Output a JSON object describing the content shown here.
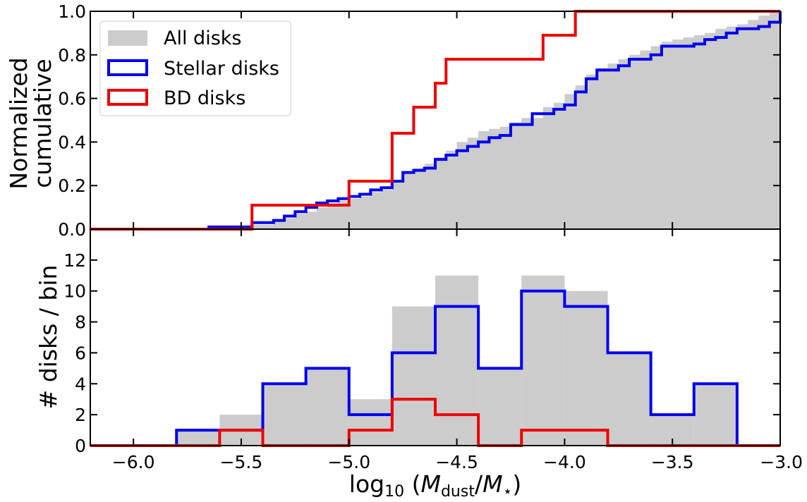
{
  "colors": {
    "all_disks": "#cccccc",
    "stellar_disks": "#0000ee",
    "bd_disks": "#ee0000"
  },
  "chart_data": [
    {
      "type": "step-area",
      "ylabel_line1": "Normalized",
      "ylabel_line2": "cumulative",
      "xlim": [
        -6.2,
        -3.0
      ],
      "ylim": [
        0.0,
        1.0
      ],
      "yticks": [
        0.0,
        0.2,
        0.4,
        0.6,
        0.8,
        1.0
      ],
      "ytick_labels": [
        "0.0",
        "0.2",
        "0.4",
        "0.6",
        "0.8",
        "1.0"
      ],
      "legend_position": "upper-left",
      "legend": [
        {
          "key": "all",
          "label": "All disks"
        },
        {
          "key": "stellar",
          "label": "Stellar disks"
        },
        {
          "key": "bd",
          "label": "BD disks"
        }
      ],
      "series": [
        {
          "key": "all",
          "name": "All disks",
          "style": "filled",
          "points": [
            [
              -6.2,
              0
            ],
            [
              -5.65,
              0.01
            ],
            [
              -5.45,
              0.02
            ],
            [
              -5.35,
              0.04
            ],
            [
              -5.3,
              0.05
            ],
            [
              -5.25,
              0.07
            ],
            [
              -5.2,
              0.08
            ],
            [
              -5.15,
              0.1
            ],
            [
              -5.1,
              0.12
            ],
            [
              -5.05,
              0.13
            ],
            [
              -5.0,
              0.14
            ],
            [
              -4.95,
              0.15
            ],
            [
              -4.9,
              0.17
            ],
            [
              -4.85,
              0.18
            ],
            [
              -4.8,
              0.2
            ],
            [
              -4.8,
              0.22
            ],
            [
              -4.75,
              0.26
            ],
            [
              -4.7,
              0.28
            ],
            [
              -4.65,
              0.3
            ],
            [
              -4.6,
              0.33
            ],
            [
              -4.55,
              0.36
            ],
            [
              -4.5,
              0.4
            ],
            [
              -4.45,
              0.42
            ],
            [
              -4.4,
              0.45
            ],
            [
              -4.35,
              0.46
            ],
            [
              -4.3,
              0.47
            ],
            [
              -4.25,
              0.49
            ],
            [
              -4.2,
              0.51
            ],
            [
              -4.1,
              0.56
            ],
            [
              -4.05,
              0.58
            ],
            [
              -4.0,
              0.62
            ],
            [
              -3.95,
              0.66
            ],
            [
              -3.9,
              0.71
            ],
            [
              -3.85,
              0.74
            ],
            [
              -3.8,
              0.76
            ],
            [
              -3.75,
              0.78
            ],
            [
              -3.7,
              0.8
            ],
            [
              -3.65,
              0.82
            ],
            [
              -3.6,
              0.84
            ],
            [
              -3.55,
              0.86
            ],
            [
              -3.5,
              0.87
            ],
            [
              -3.45,
              0.88
            ],
            [
              -3.4,
              0.89
            ],
            [
              -3.35,
              0.9
            ],
            [
              -3.3,
              0.92
            ],
            [
              -3.25,
              0.93
            ],
            [
              -3.2,
              0.94
            ],
            [
              -3.15,
              0.96
            ],
            [
              -3.1,
              0.98
            ],
            [
              -3.05,
              1.0
            ]
          ]
        },
        {
          "key": "stellar",
          "name": "Stellar disks",
          "style": "step",
          "points": [
            [
              -5.65,
              0.0
            ],
            [
              -5.65,
              0.01
            ],
            [
              -5.45,
              0.03
            ],
            [
              -5.35,
              0.04
            ],
            [
              -5.3,
              0.06
            ],
            [
              -5.25,
              0.08
            ],
            [
              -5.2,
              0.1
            ],
            [
              -5.15,
              0.12
            ],
            [
              -5.1,
              0.13
            ],
            [
              -5.05,
              0.14
            ],
            [
              -5.0,
              0.15
            ],
            [
              -4.95,
              0.16
            ],
            [
              -4.9,
              0.18
            ],
            [
              -4.85,
              0.19
            ],
            [
              -4.8,
              0.22
            ],
            [
              -4.75,
              0.26
            ],
            [
              -4.7,
              0.27
            ],
            [
              -4.65,
              0.28
            ],
            [
              -4.6,
              0.32
            ],
            [
              -4.55,
              0.34
            ],
            [
              -4.5,
              0.36
            ],
            [
              -4.45,
              0.38
            ],
            [
              -4.4,
              0.4
            ],
            [
              -4.35,
              0.42
            ],
            [
              -4.3,
              0.43
            ],
            [
              -4.25,
              0.48
            ],
            [
              -4.15,
              0.53
            ],
            [
              -4.05,
              0.55
            ],
            [
              -4.0,
              0.57
            ],
            [
              -3.95,
              0.63
            ],
            [
              -3.9,
              0.69
            ],
            [
              -3.85,
              0.73
            ],
            [
              -3.75,
              0.75
            ],
            [
              -3.7,
              0.78
            ],
            [
              -3.6,
              0.8
            ],
            [
              -3.55,
              0.84
            ],
            [
              -3.4,
              0.85
            ],
            [
              -3.35,
              0.87
            ],
            [
              -3.3,
              0.88
            ],
            [
              -3.25,
              0.9
            ],
            [
              -3.2,
              0.92
            ],
            [
              -3.1,
              0.93
            ],
            [
              -3.05,
              0.95
            ],
            [
              -3.0,
              1.0
            ]
          ]
        },
        {
          "key": "bd",
          "name": "BD disks",
          "style": "step",
          "points": [
            [
              -6.2,
              0.0
            ],
            [
              -5.45,
              0.0
            ],
            [
              -5.45,
              0.11
            ],
            [
              -5.0,
              0.11
            ],
            [
              -5.0,
              0.22
            ],
            [
              -4.8,
              0.22
            ],
            [
              -4.8,
              0.44
            ],
            [
              -4.7,
              0.44
            ],
            [
              -4.7,
              0.56
            ],
            [
              -4.6,
              0.56
            ],
            [
              -4.6,
              0.67
            ],
            [
              -4.55,
              0.67
            ],
            [
              -4.55,
              0.78
            ],
            [
              -4.1,
              0.78
            ],
            [
              -4.1,
              0.89
            ],
            [
              -3.95,
              0.89
            ],
            [
              -3.95,
              1.0
            ],
            [
              -3.0,
              1.0
            ]
          ]
        }
      ]
    },
    {
      "type": "histogram",
      "xlabel_main": "log",
      "xlabel_sub": "10",
      "xlabel_var_m": "M",
      "xlabel_sub_dust": "dust",
      "xlabel_sub_star": "⋆",
      "ylabel": "# disks / bin",
      "xlim": [
        -6.2,
        -3.0
      ],
      "ylim": [
        0,
        14
      ],
      "xticks": [
        -6.0,
        -5.5,
        -5.0,
        -4.5,
        -4.0,
        -3.5,
        -3.0
      ],
      "xtick_labels": [
        "−6.0",
        "−5.5",
        "−5.0",
        "−4.5",
        "−4.0",
        "−3.5",
        "−3.0"
      ],
      "yticks": [
        0,
        2,
        4,
        6,
        8,
        10,
        12
      ],
      "ytick_labels": [
        "0",
        "2",
        "4",
        "6",
        "8",
        "10",
        "12"
      ],
      "bin_edges": [
        -6.2,
        -6.0,
        -5.8,
        -5.6,
        -5.4,
        -5.2,
        -5.0,
        -4.8,
        -4.6,
        -4.4,
        -4.2,
        -4.0,
        -3.8,
        -3.6,
        -3.4,
        -3.2,
        -3.0
      ],
      "series": [
        {
          "key": "all",
          "name": "All disks",
          "style": "filled",
          "values": [
            0,
            0,
            1,
            2,
            4,
            5,
            3,
            9,
            11,
            5,
            11,
            10,
            6,
            2,
            4,
            0
          ]
        },
        {
          "key": "stellar",
          "name": "Stellar disks",
          "style": "step",
          "values": [
            0,
            0,
            1,
            1,
            4,
            5,
            2,
            6,
            9,
            5,
            10,
            9,
            6,
            2,
            4,
            0
          ]
        },
        {
          "key": "bd",
          "name": "BD disks",
          "style": "step",
          "values": [
            0,
            0,
            0,
            1,
            0,
            0,
            1,
            3,
            2,
            0,
            1,
            1,
            0,
            0,
            0,
            0
          ]
        }
      ]
    }
  ]
}
